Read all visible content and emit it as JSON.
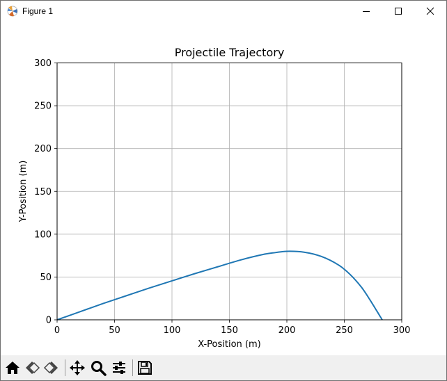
{
  "window": {
    "title": "Figure 1",
    "icons": {
      "app": "matplotlib-logo-icon",
      "minimize": "minimize-icon",
      "maximize": "maximize-icon",
      "close": "close-icon"
    }
  },
  "toolbar": {
    "items": [
      {
        "name": "home-button",
        "icon": "home-icon"
      },
      {
        "name": "back-button",
        "icon": "back-arrow-icon"
      },
      {
        "name": "forward-button",
        "icon": "forward-arrow-icon"
      },
      {
        "name": "pan-button",
        "icon": "move-icon"
      },
      {
        "name": "zoom-button",
        "icon": "zoom-icon"
      },
      {
        "name": "configure-subplots-button",
        "icon": "sliders-icon"
      },
      {
        "name": "save-button",
        "icon": "save-icon"
      }
    ]
  },
  "chart_data": {
    "type": "line",
    "title": "Projectile Trajectory",
    "xlabel": "X-Position (m)",
    "ylabel": "Y-Position (m)",
    "xlim": [
      0,
      300
    ],
    "ylim": [
      0,
      300
    ],
    "xticks": [
      "0",
      "50",
      "100",
      "150",
      "200",
      "250",
      "300"
    ],
    "yticks": [
      "0",
      "50",
      "100",
      "150",
      "200",
      "250",
      "300"
    ],
    "grid": true,
    "line_color": "#1f77b4",
    "series": [
      {
        "x": [
          0,
          20,
          40,
          60,
          80,
          100,
          120,
          140,
          160,
          180,
          190,
          200,
          215,
          230,
          245,
          255,
          265,
          272,
          278,
          283
        ],
        "y": [
          0,
          9.5,
          19,
          28,
          37,
          45.5,
          54,
          62,
          70,
          76.5,
          78.5,
          80,
          79,
          74,
          64,
          53,
          38,
          24,
          11,
          0
        ]
      }
    ]
  }
}
